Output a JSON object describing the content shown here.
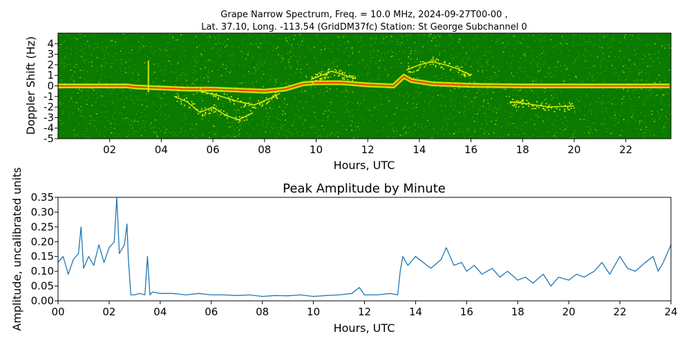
{
  "chart_data": [
    {
      "type": "heatmap",
      "title_lines": [
        "Grape Narrow Spectrum, Freq. = 10.0 MHz, 2024-09-27T00-00 ,",
        "Lat.  37.10, Long. -113.54 (GridDM37fc) Station: St George Subchannel 0"
      ],
      "xlabel": "Hours, UTC",
      "ylabel": "Doppler Shift (Hz)",
      "xlim": [
        0,
        23.75
      ],
      "ylim": [
        -5,
        5
      ],
      "x_ticks": [
        "02",
        "04",
        "06",
        "08",
        "10",
        "12",
        "14",
        "16",
        "18",
        "20",
        "22"
      ],
      "x_tick_values": [
        2,
        4,
        6,
        8,
        10,
        12,
        14,
        16,
        18,
        20,
        22
      ],
      "y_ticks": [
        "4",
        "3",
        "2",
        "1",
        "0",
        "-1",
        "-2",
        "-3",
        "-4",
        "-5"
      ],
      "y_tick_values": [
        4,
        3,
        2,
        1,
        0,
        -1,
        -2,
        -3,
        -4,
        -5
      ],
      "colors": {
        "background": "#0a7a00",
        "noise": "#3c9a00",
        "signal": "#ffff00",
        "peak": "#ff2000"
      },
      "carrier_trace_hz": {
        "x": [
          0,
          1,
          2,
          2.7,
          3,
          3.5,
          4,
          5,
          6,
          7,
          8,
          8.8,
          9.5,
          10,
          11,
          12,
          13,
          13.4,
          13.7,
          14.5,
          16,
          18,
          20,
          22,
          23.75
        ],
        "y": [
          0,
          0,
          0,
          0,
          -0.1,
          -0.15,
          -0.2,
          -0.3,
          -0.3,
          -0.4,
          -0.5,
          -0.3,
          0.2,
          0.3,
          0.3,
          0.1,
          0.0,
          0.9,
          0.5,
          0.2,
          0.05,
          0,
          0,
          0,
          0
        ]
      },
      "scatter_traces_hz": [
        {
          "x": [
            4.5,
            5.0,
            5.5,
            6.0,
            6.5,
            7.0,
            7.5
          ],
          "y": [
            -1.0,
            -1.5,
            -2.5,
            -2.0,
            -2.8,
            -3.2,
            -2.6
          ]
        },
        {
          "x": [
            5.5,
            6.2,
            7.0,
            7.6,
            8.2,
            8.6
          ],
          "y": [
            -0.5,
            -0.9,
            -1.5,
            -1.8,
            -1.2,
            -0.7
          ]
        },
        {
          "x": [
            9.8,
            10.2,
            10.6,
            11.0,
            11.5
          ],
          "y": [
            0.6,
            1.0,
            1.4,
            1.1,
            0.7
          ]
        },
        {
          "x": [
            13.5,
            14.0,
            14.5,
            15.0,
            15.5,
            16.0
          ],
          "y": [
            1.5,
            2.0,
            2.3,
            2.0,
            1.6,
            1.0
          ]
        },
        {
          "x": [
            17.5,
            18.2,
            19.0,
            20.0
          ],
          "y": [
            -1.5,
            -1.7,
            -2.0,
            -1.9
          ]
        }
      ]
    },
    {
      "type": "line",
      "title": "Peak Amplitude by Minute",
      "xlabel": "Hours, UTC",
      "ylabel": "Amplitude, uncalibrated units",
      "xlim": [
        0,
        24
      ],
      "ylim": [
        0,
        0.35
      ],
      "x_ticks": [
        "00",
        "02",
        "04",
        "06",
        "08",
        "10",
        "12",
        "14",
        "16",
        "18",
        "20",
        "22",
        "24"
      ],
      "x_tick_values": [
        0,
        2,
        4,
        6,
        8,
        10,
        12,
        14,
        16,
        18,
        20,
        22,
        24
      ],
      "y_ticks": [
        "0.00",
        "0.05",
        "0.10",
        "0.15",
        "0.20",
        "0.25",
        "0.30",
        "0.35"
      ],
      "y_tick_values": [
        0,
        0.05,
        0.1,
        0.15,
        0.2,
        0.25,
        0.3,
        0.35
      ],
      "colors": {
        "line": "#1f77b4"
      },
      "series": [
        {
          "x": [
            0,
            0.2,
            0.4,
            0.6,
            0.8,
            0.9,
            1.0,
            1.2,
            1.4,
            1.6,
            1.8,
            2.0,
            2.2,
            2.3,
            2.4,
            2.6,
            2.7,
            2.75,
            2.85,
            3.0,
            3.2,
            3.4,
            3.5,
            3.6,
            3.7,
            4.0,
            4.5,
            5.0,
            5.5,
            6.0,
            6.5,
            7.0,
            7.5,
            8.0,
            8.5,
            9.0,
            9.5,
            10.0,
            10.5,
            11.0,
            11.5,
            11.8,
            12.0,
            12.5,
            13.0,
            13.3,
            13.4,
            13.5,
            13.7,
            14.0,
            14.3,
            14.6,
            15.0,
            15.2,
            15.5,
            15.8,
            16.0,
            16.3,
            16.6,
            17.0,
            17.3,
            17.6,
            18.0,
            18.3,
            18.6,
            19.0,
            19.3,
            19.6,
            20.0,
            20.3,
            20.6,
            21.0,
            21.3,
            21.6,
            22.0,
            22.3,
            22.6,
            23.0,
            23.3,
            23.5,
            23.7,
            24.0
          ],
          "y": [
            0.13,
            0.15,
            0.09,
            0.14,
            0.16,
            0.25,
            0.11,
            0.15,
            0.12,
            0.19,
            0.13,
            0.18,
            0.2,
            0.35,
            0.16,
            0.19,
            0.26,
            0.15,
            0.02,
            0.02,
            0.025,
            0.02,
            0.15,
            0.02,
            0.03,
            0.025,
            0.025,
            0.02,
            0.025,
            0.02,
            0.02,
            0.018,
            0.02,
            0.015,
            0.018,
            0.017,
            0.02,
            0.015,
            0.018,
            0.02,
            0.025,
            0.045,
            0.02,
            0.02,
            0.025,
            0.02,
            0.1,
            0.15,
            0.12,
            0.15,
            0.13,
            0.11,
            0.14,
            0.18,
            0.12,
            0.13,
            0.1,
            0.12,
            0.09,
            0.11,
            0.08,
            0.1,
            0.07,
            0.08,
            0.06,
            0.09,
            0.05,
            0.08,
            0.07,
            0.09,
            0.08,
            0.1,
            0.13,
            0.09,
            0.15,
            0.11,
            0.1,
            0.13,
            0.15,
            0.1,
            0.13,
            0.19
          ]
        }
      ]
    }
  ]
}
